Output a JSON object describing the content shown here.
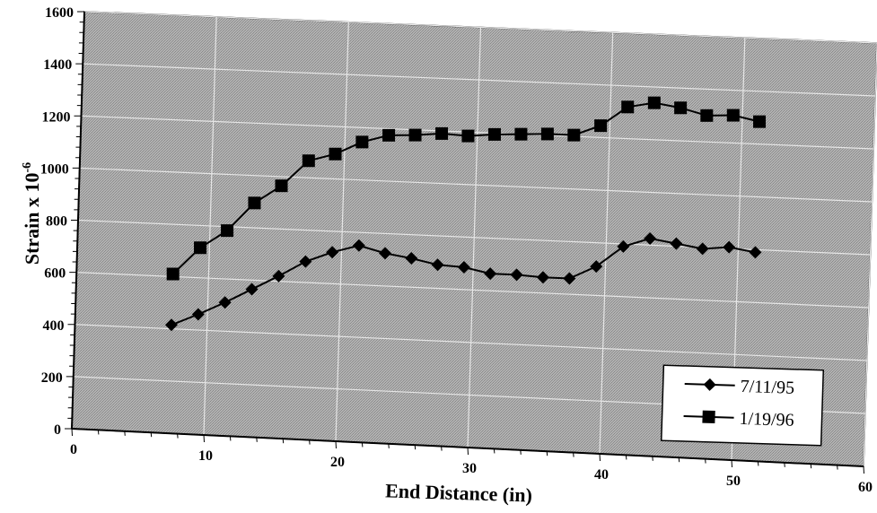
{
  "chart_data": {
    "type": "line",
    "title": "",
    "xlabel": "End Distance (in)",
    "ylabel_main": "Strain x 10",
    "ylabel_exponent": "-6",
    "xlim": [
      0,
      60
    ],
    "ylim": [
      0,
      1600
    ],
    "x_ticks": [
      "0",
      "10",
      "20",
      "30",
      "40",
      "50",
      "60"
    ],
    "y_ticks": [
      "0",
      "200",
      "400",
      "600",
      "800",
      "1000",
      "1200",
      "1400",
      "1600"
    ],
    "grid": true,
    "legend_position": "bottom-right",
    "series": [
      {
        "name": "7/11/95",
        "marker": "diamond",
        "color": "#000000",
        "x": [
          7.3,
          9.3,
          11.3,
          13.3,
          15.3,
          17.3,
          19.3,
          21.3,
          23.3,
          25.3,
          27.3,
          29.3,
          31.3,
          33.3,
          35.3,
          37.3,
          39.3,
          41.3,
          43.3,
          45.3,
          47.3,
          49.3,
          51.3
        ],
        "y": [
          415,
          460,
          510,
          565,
          620,
          680,
          720,
          750,
          725,
          710,
          690,
          685,
          665,
          665,
          660,
          660,
          710,
          790,
          825,
          810,
          795,
          805,
          790
        ]
      },
      {
        "name": "1/19/96",
        "marker": "square",
        "color": "#000000",
        "x": [
          7.3,
          9.3,
          11.3,
          13.3,
          15.3,
          17.3,
          19.3,
          21.3,
          23.3,
          25.3,
          27.3,
          29.3,
          31.3,
          33.3,
          35.3,
          37.3,
          39.3,
          41.3,
          43.3,
          45.3,
          47.3,
          49.3,
          51.3
        ],
        "y": [
          610,
          715,
          785,
          895,
          965,
          1065,
          1095,
          1145,
          1175,
          1180,
          1190,
          1185,
          1195,
          1200,
          1205,
          1205,
          1245,
          1320,
          1340,
          1325,
          1300,
          1305,
          1285
        ]
      }
    ]
  },
  "colors": {
    "plot_background": "#a8a8a8",
    "gridline": "#e6e6e6",
    "line": "#000000",
    "legend_background": "#ffffff"
  }
}
